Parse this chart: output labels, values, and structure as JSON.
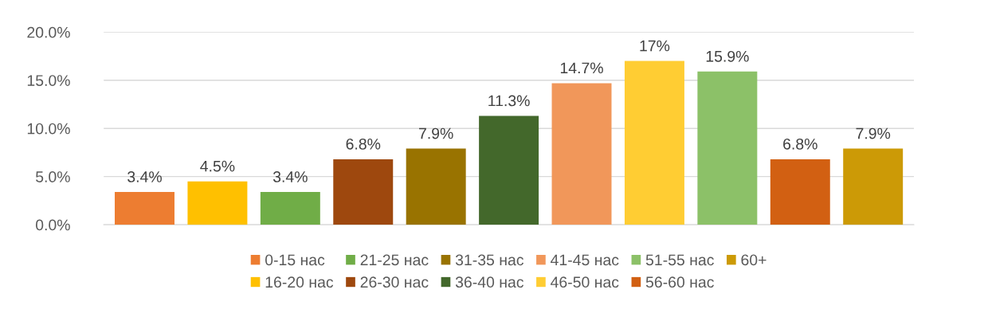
{
  "chart_data": {
    "type": "bar",
    "categories": [
      null
    ],
    "series": [
      {
        "name": "0-15 нас",
        "color": "#ed7d31",
        "values": [
          3.4
        ],
        "value_labels": [
          "3.4%"
        ]
      },
      {
        "name": "16-20 нас",
        "color": "#ffc000",
        "values": [
          4.5
        ],
        "value_labels": [
          "4.5%"
        ]
      },
      {
        "name": "21-25 нас",
        "color": "#70ad47",
        "values": [
          3.4
        ],
        "value_labels": [
          "3.4%"
        ]
      },
      {
        "name": "26-30 нас",
        "color": "#9e480e",
        "values": [
          6.8
        ],
        "value_labels": [
          "6.8%"
        ]
      },
      {
        "name": "31-35 нас",
        "color": "#997300",
        "values": [
          7.9
        ],
        "value_labels": [
          "7.9%"
        ]
      },
      {
        "name": "36-40 нас",
        "color": "#43682b",
        "values": [
          11.3
        ],
        "value_labels": [
          "11.3%"
        ]
      },
      {
        "name": "41-45 нас",
        "color": "#f1975a",
        "values": [
          14.7
        ],
        "value_labels": [
          "14.7%"
        ]
      },
      {
        "name": "46-50 нас",
        "color": "#ffcd33",
        "values": [
          17
        ],
        "value_labels": [
          "17%"
        ]
      },
      {
        "name": "51-55 нас",
        "color": "#8cc168",
        "values": [
          15.9
        ],
        "value_labels": [
          "15.9%"
        ]
      },
      {
        "name": "56-60 нас",
        "color": "#d26012",
        "values": [
          6.8
        ],
        "value_labels": [
          "6.8%"
        ]
      },
      {
        "name": "60+",
        "color": "#cc9a06",
        "values": [
          7.9
        ],
        "value_labels": [
          "7.9%"
        ]
      }
    ],
    "ylim": [
      0,
      20
    ],
    "yticks": [
      {
        "value": 0,
        "label": "0.0%"
      },
      {
        "value": 5,
        "label": "5.0%"
      },
      {
        "value": 10,
        "label": "10.0%"
      },
      {
        "value": 15,
        "label": "15.0%"
      },
      {
        "value": 20,
        "label": "20.0%"
      }
    ],
    "grid": "y",
    "legend": "bottom"
  }
}
